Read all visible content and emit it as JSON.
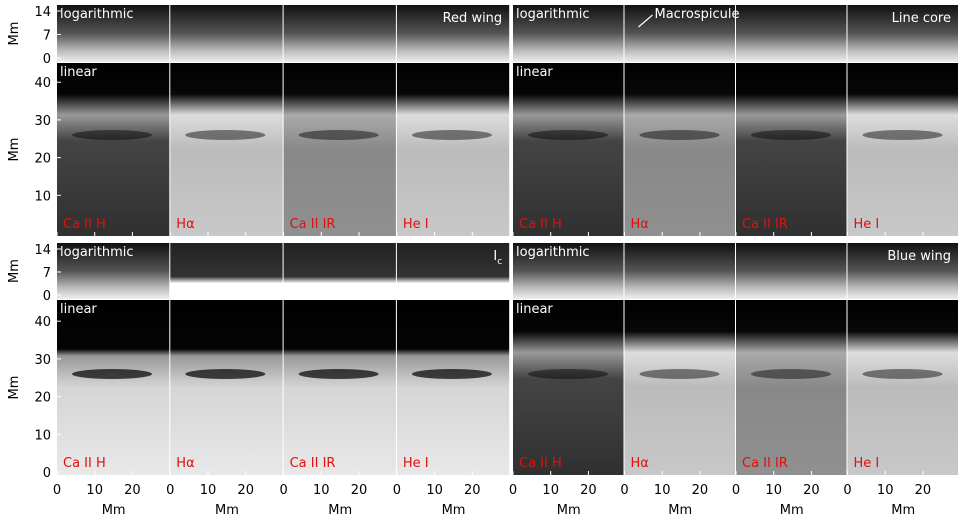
{
  "y_axis": {
    "label": "Mm",
    "log_ticks": [
      14,
      7,
      0
    ],
    "linear_ticks_top": [
      40,
      30,
      20,
      10
    ],
    "linear_ticks_bottom": [
      40,
      30,
      20,
      10,
      0
    ]
  },
  "x_axis": {
    "label": "Mm",
    "ticks": [
      0,
      10,
      20
    ]
  },
  "scale_labels": {
    "log": "logarithmic",
    "linear": "linear"
  },
  "line_labels": [
    "Ca II H",
    "Hα",
    "Ca II IR",
    "He I"
  ],
  "panels": [
    {
      "title": "Red wing"
    },
    {
      "title": "Line core",
      "annotation": "Macrospicule"
    },
    {
      "title": "I",
      "title_subscript": "c"
    },
    {
      "title": "Blue wing"
    }
  ]
}
